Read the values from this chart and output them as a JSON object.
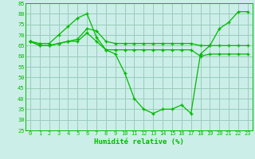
{
  "xlabel": "Humidité relative (%)",
  "bg_color": "#cceee8",
  "grid_color": "#99ccbb",
  "line_color": "#00bb00",
  "xlim": [
    -0.5,
    23.5
  ],
  "ylim": [
    25,
    85
  ],
  "yticks": [
    25,
    30,
    35,
    40,
    45,
    50,
    55,
    60,
    65,
    70,
    75,
    80,
    85
  ],
  "xticks": [
    0,
    1,
    2,
    3,
    4,
    5,
    6,
    7,
    8,
    9,
    10,
    11,
    12,
    13,
    14,
    15,
    16,
    17,
    18,
    19,
    20,
    21,
    22,
    23
  ],
  "series": [
    {
      "x": [
        0,
        1,
        2,
        3,
        4,
        5,
        6,
        7,
        8,
        9,
        10,
        11,
        12,
        13,
        14,
        15,
        16,
        17,
        18,
        19,
        20,
        21,
        22,
        23
      ],
      "y": [
        67,
        66,
        66,
        70,
        74,
        78,
        80,
        69,
        63,
        61,
        52,
        40,
        35,
        33,
        35,
        35,
        37,
        33,
        61,
        65,
        73,
        76,
        81,
        81
      ]
    },
    {
      "x": [
        0,
        1,
        2,
        3,
        4,
        5,
        6,
        7,
        8,
        9,
        10,
        11,
        12,
        13,
        14,
        15,
        16,
        17,
        18,
        19,
        20,
        21,
        22,
        23
      ],
      "y": [
        67,
        65,
        65,
        66,
        67,
        68,
        73,
        72,
        67,
        66,
        66,
        66,
        66,
        66,
        66,
        66,
        66,
        66,
        65,
        65,
        65,
        65,
        65,
        65
      ]
    },
    {
      "x": [
        0,
        1,
        2,
        3,
        4,
        5,
        6,
        7,
        8,
        9,
        10,
        11,
        12,
        13,
        14,
        15,
        16,
        17,
        18,
        19,
        20,
        21,
        22,
        23
      ],
      "y": [
        67,
        65,
        65,
        66,
        67,
        67,
        71,
        67,
        63,
        63,
        63,
        63,
        63,
        63,
        63,
        63,
        63,
        63,
        60,
        61,
        61,
        61,
        61,
        61
      ]
    }
  ]
}
